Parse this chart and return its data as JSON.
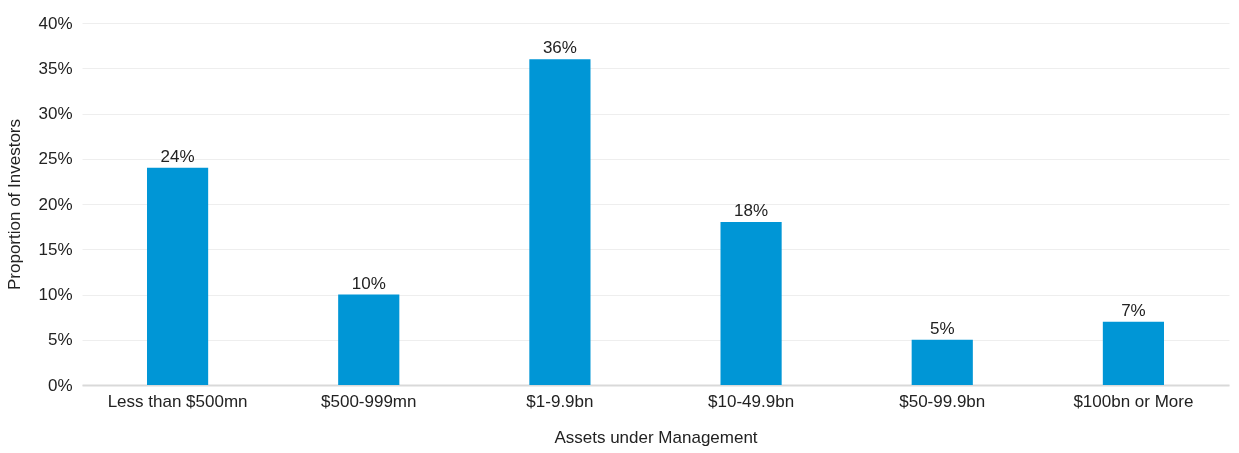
{
  "chart_data": {
    "type": "bar",
    "xlabel": "Assets under Management",
    "ylabel": "Proportion of Investors",
    "categories": [
      "Less than $500mn",
      "$500-999mn",
      "$1-9.9bn",
      "$10-49.9bn",
      "$50-99.9bn",
      "$100bn or More"
    ],
    "values": [
      24,
      10,
      36,
      18,
      5,
      7
    ],
    "value_labels": [
      "24%",
      "10%",
      "36%",
      "18%",
      "5%",
      "7%"
    ],
    "color": "#0096d6",
    "ylim": [
      0,
      40
    ],
    "yticks": [
      {
        "value": 0,
        "label": "0%"
      },
      {
        "value": 5,
        "label": "5%"
      },
      {
        "value": 10,
        "label": "10%"
      },
      {
        "value": 15,
        "label": "15%"
      },
      {
        "value": 20,
        "label": "20%"
      },
      {
        "value": 25,
        "label": "25%"
      },
      {
        "value": 30,
        "label": "30%"
      },
      {
        "value": 35,
        "label": "35%"
      },
      {
        "value": 40,
        "label": "40%"
      }
    ],
    "grid": "y"
  }
}
